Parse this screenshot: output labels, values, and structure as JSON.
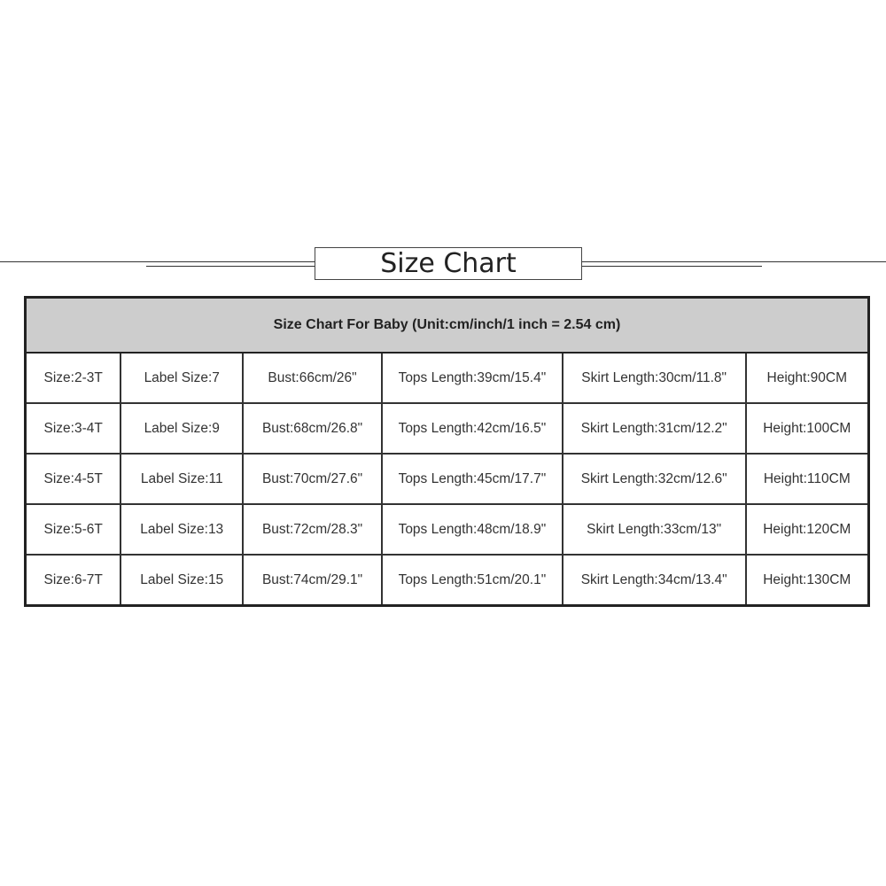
{
  "title": "Size Chart",
  "table": {
    "header": "Size Chart For Baby (Unit:cm/inch/1 inch = 2.54 cm)",
    "rows": [
      [
        "Size:2-3T",
        "Label Size:7",
        "Bust:66cm/26\"",
        "Tops Length:39cm/15.4\"",
        "Skirt Length:30cm/11.8\"",
        "Height:90CM"
      ],
      [
        "Size:3-4T",
        "Label Size:9",
        "Bust:68cm/26.8\"",
        "Tops Length:42cm/16.5\"",
        "Skirt Length:31cm/12.2\"",
        "Height:100CM"
      ],
      [
        "Size:4-5T",
        "Label Size:11",
        "Bust:70cm/27.6\"",
        "Tops Length:45cm/17.7\"",
        "Skirt Length:32cm/12.6\"",
        "Height:110CM"
      ],
      [
        "Size:5-6T",
        "Label Size:13",
        "Bust:72cm/28.3\"",
        "Tops Length:48cm/18.9\"",
        "Skirt Length:33cm/13\"",
        "Height:120CM"
      ],
      [
        "Size:6-7T",
        "Label Size:15",
        "Bust:74cm/29.1\"",
        "Tops Length:51cm/20.1\"",
        "Skirt Length:34cm/13.4\"",
        "Height:130CM"
      ]
    ]
  }
}
